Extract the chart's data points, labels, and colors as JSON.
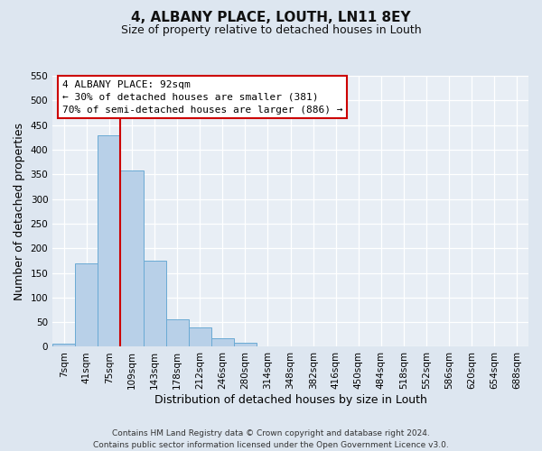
{
  "title": "4, ALBANY PLACE, LOUTH, LN11 8EY",
  "subtitle": "Size of property relative to detached houses in Louth",
  "xlabel": "Distribution of detached houses by size in Louth",
  "ylabel": "Number of detached properties",
  "bin_labels": [
    "7sqm",
    "41sqm",
    "75sqm",
    "109sqm",
    "143sqm",
    "178sqm",
    "212sqm",
    "246sqm",
    "280sqm",
    "314sqm",
    "348sqm",
    "382sqm",
    "416sqm",
    "450sqm",
    "484sqm",
    "518sqm",
    "552sqm",
    "586sqm",
    "620sqm",
    "654sqm",
    "688sqm"
  ],
  "bar_heights": [
    7,
    170,
    430,
    357,
    175,
    55,
    40,
    18,
    8,
    1,
    0,
    0,
    0,
    0,
    0,
    1,
    0,
    0,
    0,
    1,
    0
  ],
  "bar_color": "#b8d0e8",
  "bar_edge_color": "#6aaad4",
  "vline_x": 2.5,
  "vline_color": "#cc0000",
  "ylim": [
    0,
    550
  ],
  "yticks": [
    0,
    50,
    100,
    150,
    200,
    250,
    300,
    350,
    400,
    450,
    500,
    550
  ],
  "annotation_title": "4 ALBANY PLACE: 92sqm",
  "annotation_line1": "← 30% of detached houses are smaller (381)",
  "annotation_line2": "70% of semi-detached houses are larger (886) →",
  "annotation_box_color": "#ffffff",
  "annotation_box_edge": "#cc0000",
  "footer_line1": "Contains HM Land Registry data © Crown copyright and database right 2024.",
  "footer_line2": "Contains public sector information licensed under the Open Government Licence v3.0.",
  "bg_color": "#dde6f0",
  "plot_bg_color": "#e8eef5",
  "grid_color": "#ffffff",
  "title_fontsize": 11,
  "subtitle_fontsize": 9,
  "axis_label_fontsize": 9,
  "tick_fontsize": 7.5,
  "footer_fontsize": 6.5,
  "annotation_fontsize": 8
}
